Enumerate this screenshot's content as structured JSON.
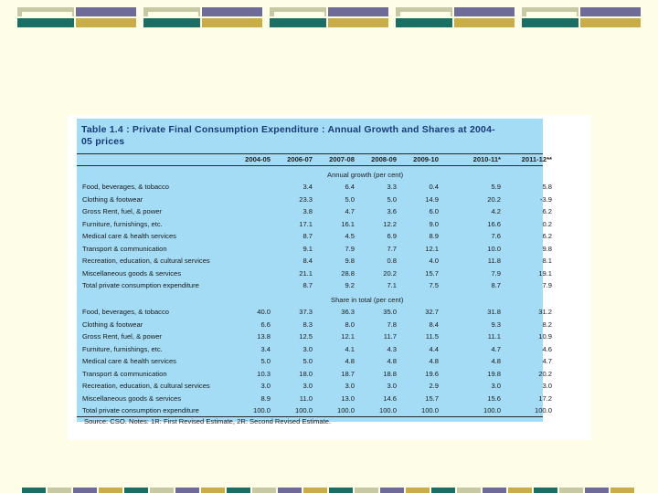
{
  "table": {
    "title": "Table 1.4 : Private Final Consumption Expenditure : Annual Growth and Shares at 2004-05 prices",
    "title_line1": "Table 1.4 : Private Final Consumption Expenditure : Annual Growth and Shares at 2004-",
    "title_line2": "05 prices",
    "columns": [
      "2004-05",
      "2006-07",
      "2007-08",
      "2008-09",
      "2009-10",
      "2010-11*",
      "2011-12**"
    ],
    "growth_label": "Annual growth (per cent)",
    "share_label": "Share in total (per cent)",
    "growth_rows": [
      {
        "label": "Food, beverages, & tobacco",
        "values": [
          "",
          "3.4",
          "6.4",
          "3.3",
          "0.4",
          "5.9",
          "5.8"
        ]
      },
      {
        "label": "Clothing & footwear",
        "values": [
          "",
          "23.3",
          "5.0",
          "5.0",
          "14.9",
          "20.2",
          "-3.9"
        ]
      },
      {
        "label": "Gross Rent, fuel, & power",
        "values": [
          "",
          "3.8",
          "4.7",
          "3.6",
          "6.0",
          "4.2",
          "6.2"
        ]
      },
      {
        "label": "Furniture, furnishings, etc.",
        "values": [
          "",
          "17.1",
          "16.1",
          "12.2",
          "9.0",
          "16.6",
          "0.2"
        ]
      },
      {
        "label": "Medical care & health services",
        "values": [
          "",
          "8.7",
          "4.5",
          "6.9",
          "8.9",
          "7.6",
          "6.2"
        ]
      },
      {
        "label": "Transport & communication",
        "values": [
          "",
          "9.1",
          "7.9",
          "7.7",
          "12.1",
          "10.0",
          "9.8"
        ]
      },
      {
        "label": "Recreation, education, & cultural services",
        "values": [
          "",
          "8.4",
          "9.8",
          "0.8",
          "4.0",
          "11.8",
          "8.1"
        ]
      },
      {
        "label": "Miscellaneous goods & services",
        "values": [
          "",
          "21.1",
          "28.8",
          "20.2",
          "15.7",
          "7.9",
          "19.1"
        ]
      },
      {
        "label": "Total private consumption expenditure",
        "values": [
          "",
          "8.7",
          "9.2",
          "7.1",
          "7.5",
          "8.7",
          "7.9"
        ]
      }
    ],
    "share_rows": [
      {
        "label": "Food, beverages, & tobacco",
        "values": [
          "40.0",
          "37.3",
          "36.3",
          "35.0",
          "32.7",
          "31.8",
          "31.2"
        ]
      },
      {
        "label": "Clothing & footwear",
        "values": [
          "6.6",
          "8.3",
          "8.0",
          "7.8",
          "8.4",
          "9.3",
          "8.2"
        ]
      },
      {
        "label": "Gross Rent, fuel, & power",
        "values": [
          "13.8",
          "12.5",
          "12.1",
          "11.7",
          "11.5",
          "11.1",
          "10.9"
        ]
      },
      {
        "label": "Furniture, furnishings, etc.",
        "values": [
          "3.4",
          "3.0",
          "4.1",
          "4.3",
          "4.4",
          "4.7",
          "4.6"
        ]
      },
      {
        "label": "Medical care & health services",
        "values": [
          "5.0",
          "5.0",
          "4.8",
          "4.8",
          "4.8",
          "4.8",
          "4.7"
        ]
      },
      {
        "label": "Transport & communication",
        "values": [
          "10.3",
          "18.0",
          "18.7",
          "18.8",
          "19.6",
          "19.8",
          "20.2"
        ]
      },
      {
        "label": "Recreation, education, & cultural services",
        "values": [
          "3.0",
          "3.0",
          "3.0",
          "3.0",
          "2.9",
          "3.0",
          "3.0"
        ]
      },
      {
        "label": "Miscellaneous goods & services",
        "values": [
          "8.9",
          "11.0",
          "13.0",
          "14.6",
          "15.7",
          "15.6",
          "17.2"
        ]
      },
      {
        "label": "Total private consumption expenditure",
        "values": [
          "100.0",
          "100.0",
          "100.0",
          "100.0",
          "100.0",
          "100.0",
          "100.0"
        ]
      }
    ],
    "source": "Source: CSO. Notes: 1R: First Revised Estimate, 2R: Second Revised Estimate."
  },
  "colors": {
    "background": "#fdfde8",
    "label_column": "#a4dcf6",
    "title_text": "#183a78"
  }
}
